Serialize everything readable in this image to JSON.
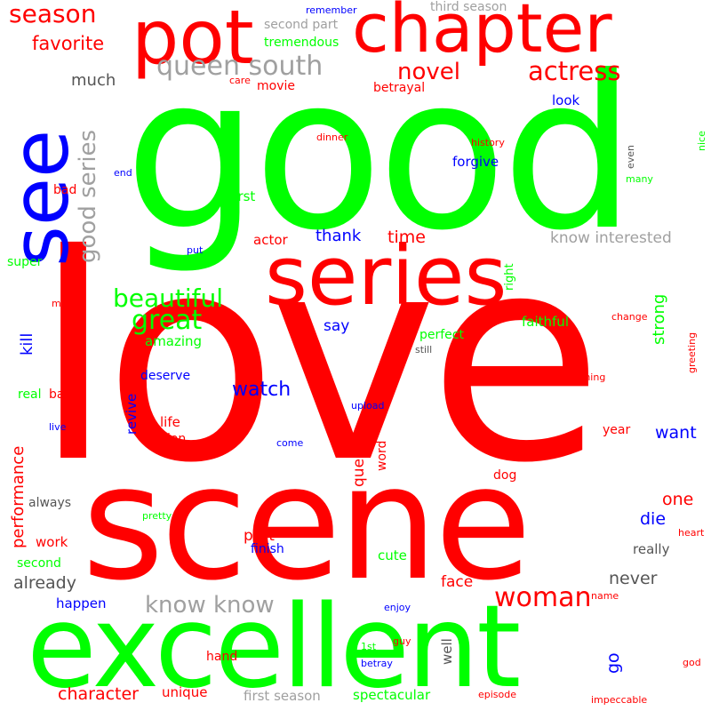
{
  "palette": {
    "red": "#ff0000",
    "green": "#00ff00",
    "blue": "#0000ff",
    "gray": "#a0a0a0",
    "dark": "#555555"
  },
  "words": [
    {
      "id": "good",
      "text": "good",
      "color": "#00ff00",
      "vertical": false
    },
    {
      "id": "love",
      "text": "love",
      "color": "#ff0000",
      "vertical": false
    },
    {
      "id": "scene",
      "text": "scene",
      "color": "#ff0000",
      "vertical": false
    },
    {
      "id": "excellent",
      "text": "excellent",
      "color": "#00ff00",
      "vertical": false
    },
    {
      "id": "series",
      "text": "series",
      "color": "#ff0000",
      "vertical": false
    },
    {
      "id": "see",
      "text": "see",
      "color": "#0000ff",
      "vertical": true
    },
    {
      "id": "chapter",
      "text": "chapter",
      "color": "#ff0000",
      "vertical": false
    },
    {
      "id": "pot",
      "text": "pot",
      "color": "#ff0000",
      "vertical": false
    },
    {
      "id": "season",
      "text": "season",
      "color": "#ff0000",
      "vertical": false
    },
    {
      "id": "favorite",
      "text": "favorite",
      "color": "#ff0000",
      "vertical": false
    },
    {
      "id": "queen-south",
      "text": "queen south",
      "color": "#a0a0a0",
      "vertical": false
    },
    {
      "id": "novel",
      "text": "novel",
      "color": "#ff0000",
      "vertical": false
    },
    {
      "id": "actress",
      "text": "actress",
      "color": "#ff0000",
      "vertical": false
    },
    {
      "id": "good-series",
      "text": "good series",
      "color": "#a0a0a0",
      "vertical": true
    },
    {
      "id": "much",
      "text": "much",
      "color": "#555555",
      "vertical": false
    },
    {
      "id": "second-part",
      "text": "second part",
      "color": "#a0a0a0",
      "vertical": false
    },
    {
      "id": "tremendous",
      "text": "tremendous",
      "color": "#00ff00",
      "vertical": false
    },
    {
      "id": "remember",
      "text": "remember",
      "color": "#0000ff",
      "vertical": false
    },
    {
      "id": "third-season",
      "text": "third season",
      "color": "#a0a0a0",
      "vertical": false
    },
    {
      "id": "care",
      "text": "care",
      "color": "#ff0000",
      "vertical": false
    },
    {
      "id": "movie",
      "text": "movie",
      "color": "#ff0000",
      "vertical": false
    },
    {
      "id": "betrayal",
      "text": "betrayal",
      "color": "#ff0000",
      "vertical": false
    },
    {
      "id": "look",
      "text": "look",
      "color": "#0000ff",
      "vertical": false
    },
    {
      "id": "dinner",
      "text": "dinner",
      "color": "#ff0000",
      "vertical": false
    },
    {
      "id": "history",
      "text": "history",
      "color": "#ff0000",
      "vertical": false
    },
    {
      "id": "nice",
      "text": "nice",
      "color": "#00ff00",
      "vertical": true
    },
    {
      "id": "even",
      "text": "even",
      "color": "#555555",
      "vertical": true
    },
    {
      "id": "forgive",
      "text": "forgive",
      "color": "#0000ff",
      "vertical": false
    },
    {
      "id": "many",
      "text": "many",
      "color": "#00ff00",
      "vertical": false
    },
    {
      "id": "end",
      "text": "end",
      "color": "#0000ff",
      "vertical": false
    },
    {
      "id": "bad",
      "text": "bad",
      "color": "#ff0000",
      "vertical": false
    },
    {
      "id": "first",
      "text": "first",
      "color": "#00ff00",
      "vertical": false
    },
    {
      "id": "thank",
      "text": "thank",
      "color": "#0000ff",
      "vertical": false
    },
    {
      "id": "time",
      "text": "time",
      "color": "#ff0000",
      "vertical": false
    },
    {
      "id": "know-interested",
      "text": "know interested",
      "color": "#a0a0a0",
      "vertical": false
    },
    {
      "id": "actor",
      "text": "actor",
      "color": "#ff0000",
      "vertical": false
    },
    {
      "id": "put",
      "text": "put",
      "color": "#0000ff",
      "vertical": false
    },
    {
      "id": "super",
      "text": "super",
      "color": "#00ff00",
      "vertical": false
    },
    {
      "id": "right",
      "text": "right",
      "color": "#00ff00",
      "vertical": true
    },
    {
      "id": "strong",
      "text": "strong",
      "color": "#00ff00",
      "vertical": true
    },
    {
      "id": "beautiful",
      "text": "beautiful",
      "color": "#00ff00",
      "vertical": false
    },
    {
      "id": "great",
      "text": "great",
      "color": "#00ff00",
      "vertical": false
    },
    {
      "id": "man",
      "text": "man",
      "color": "#ff0000",
      "vertical": false
    },
    {
      "id": "say",
      "text": "say",
      "color": "#0000ff",
      "vertical": false
    },
    {
      "id": "faithful",
      "text": "faithful",
      "color": "#00ff00",
      "vertical": false
    },
    {
      "id": "change",
      "text": "change",
      "color": "#ff0000",
      "vertical": false
    },
    {
      "id": "amazing",
      "text": "amazing",
      "color": "#00ff00",
      "vertical": false
    },
    {
      "id": "perfect",
      "text": "perfect",
      "color": "#00ff00",
      "vertical": false
    },
    {
      "id": "still",
      "text": "still",
      "color": "#555555",
      "vertical": false
    },
    {
      "id": "greeting",
      "text": "greeting",
      "color": "#ff0000",
      "vertical": true
    },
    {
      "id": "kill",
      "text": "kill",
      "color": "#0000ff",
      "vertical": true
    },
    {
      "id": "deserve",
      "text": "deserve",
      "color": "#0000ff",
      "vertical": false
    },
    {
      "id": "thing",
      "text": "thing",
      "color": "#ff0000",
      "vertical": false
    },
    {
      "id": "watch",
      "text": "watch",
      "color": "#0000ff",
      "vertical": false
    },
    {
      "id": "real",
      "text": "real",
      "color": "#00ff00",
      "vertical": false
    },
    {
      "id": "baby",
      "text": "baby",
      "color": "#ff0000",
      "vertical": false
    },
    {
      "id": "upload",
      "text": "upload",
      "color": "#0000ff",
      "vertical": false
    },
    {
      "id": "revive",
      "text": "revive",
      "color": "#0000ff",
      "vertical": true
    },
    {
      "id": "life",
      "text": "life",
      "color": "#ff0000",
      "vertical": false
    },
    {
      "id": "live",
      "text": "live",
      "color": "#0000ff",
      "vertical": false
    },
    {
      "id": "want",
      "text": "want",
      "color": "#0000ff",
      "vertical": false
    },
    {
      "id": "year",
      "text": "year",
      "color": "#ff0000",
      "vertical": false
    },
    {
      "id": "version",
      "text": "version",
      "color": "#ff0000",
      "vertical": false
    },
    {
      "id": "come",
      "text": "come",
      "color": "#0000ff",
      "vertical": false
    },
    {
      "id": "performance",
      "text": "performance",
      "color": "#ff0000",
      "vertical": true
    },
    {
      "id": "queen",
      "text": "queen",
      "color": "#ff0000",
      "vertical": true
    },
    {
      "id": "word",
      "text": "word",
      "color": "#ff0000",
      "vertical": true
    },
    {
      "id": "dog",
      "text": "dog",
      "color": "#ff0000",
      "vertical": false
    },
    {
      "id": "always",
      "text": "always",
      "color": "#555555",
      "vertical": false
    },
    {
      "id": "one",
      "text": "one",
      "color": "#ff0000",
      "vertical": false
    },
    {
      "id": "pretty",
      "text": "pretty",
      "color": "#00ff00",
      "vertical": false
    },
    {
      "id": "die",
      "text": "die",
      "color": "#0000ff",
      "vertical": false
    },
    {
      "id": "heart",
      "text": "heart",
      "color": "#ff0000",
      "vertical": false
    },
    {
      "id": "work",
      "text": "work",
      "color": "#ff0000",
      "vertical": false
    },
    {
      "id": "part",
      "text": "part",
      "color": "#ff0000",
      "vertical": false
    },
    {
      "id": "finish",
      "text": "finish",
      "color": "#0000ff",
      "vertical": false
    },
    {
      "id": "really",
      "text": "really",
      "color": "#555555",
      "vertical": false
    },
    {
      "id": "second",
      "text": "second",
      "color": "#00ff00",
      "vertical": false
    },
    {
      "id": "cute",
      "text": "cute",
      "color": "#00ff00",
      "vertical": false
    },
    {
      "id": "already",
      "text": "already",
      "color": "#555555",
      "vertical": false
    },
    {
      "id": "never",
      "text": "never",
      "color": "#555555",
      "vertical": false
    },
    {
      "id": "face",
      "text": "face",
      "color": "#ff0000",
      "vertical": false
    },
    {
      "id": "woman",
      "text": "woman",
      "color": "#ff0000",
      "vertical": false
    },
    {
      "id": "name",
      "text": "name",
      "color": "#ff0000",
      "vertical": false
    },
    {
      "id": "know-know",
      "text": "know know",
      "color": "#a0a0a0",
      "vertical": false
    },
    {
      "id": "happen",
      "text": "happen",
      "color": "#0000ff",
      "vertical": false
    },
    {
      "id": "enjoy",
      "text": "enjoy",
      "color": "#0000ff",
      "vertical": false
    },
    {
      "id": "go",
      "text": "go",
      "color": "#0000ff",
      "vertical": true
    },
    {
      "id": "1st",
      "text": "1st",
      "color": "#00ff00",
      "vertical": false
    },
    {
      "id": "guy",
      "text": "guy",
      "color": "#ff0000",
      "vertical": false
    },
    {
      "id": "well",
      "text": "well",
      "color": "#555555",
      "vertical": true
    },
    {
      "id": "hand",
      "text": "hand",
      "color": "#ff0000",
      "vertical": false
    },
    {
      "id": "betray",
      "text": "betray",
      "color": "#0000ff",
      "vertical": false
    },
    {
      "id": "god",
      "text": "god",
      "color": "#ff0000",
      "vertical": false
    },
    {
      "id": "character",
      "text": "character",
      "color": "#ff0000",
      "vertical": false
    },
    {
      "id": "unique",
      "text": "unique",
      "color": "#ff0000",
      "vertical": false
    },
    {
      "id": "first-season",
      "text": "first season",
      "color": "#a0a0a0",
      "vertical": false
    },
    {
      "id": "spectacular",
      "text": "spectacular",
      "color": "#00ff00",
      "vertical": false
    },
    {
      "id": "episode",
      "text": "episode",
      "color": "#ff0000",
      "vertical": false
    },
    {
      "id": "impeccable",
      "text": "impeccable",
      "color": "#ff0000",
      "vertical": false
    }
  ]
}
